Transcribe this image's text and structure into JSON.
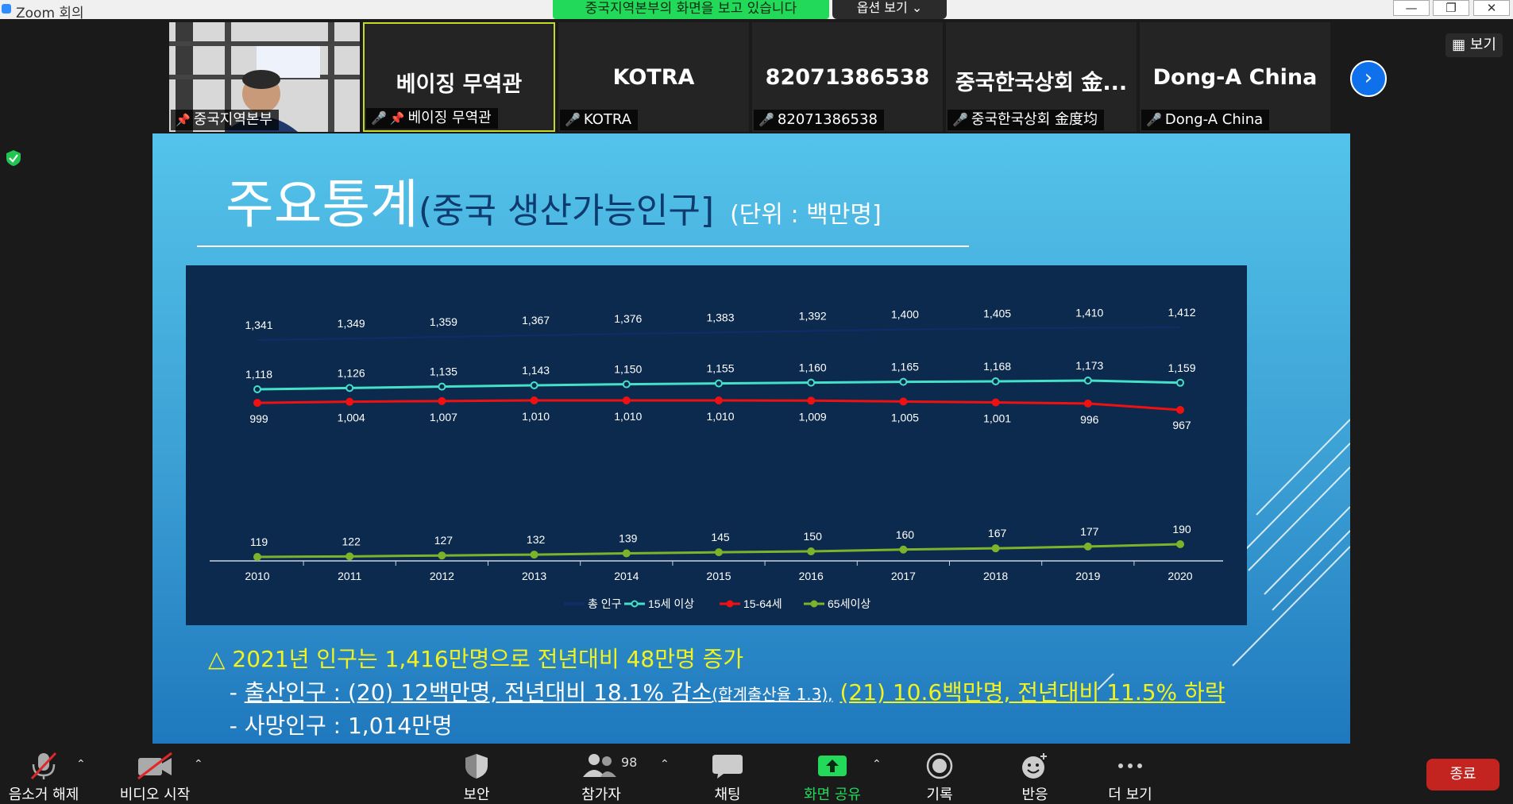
{
  "window": {
    "title": "Zoom 회의",
    "share_banner": "중국지역본부의 화면을 보고 있습니다",
    "view_options": "옵션 보기",
    "view_options_caret": "⌄",
    "minimize": "—",
    "restore": "❐",
    "close": "✕"
  },
  "participants": [
    {
      "tile_name": "",
      "label": "중국지역본부",
      "pinned": true,
      "muted": false,
      "video": true
    },
    {
      "tile_name": "베이징 무역관",
      "label": "베이징 무역관",
      "pinned": true,
      "muted": true,
      "active": true
    },
    {
      "tile_name": "KOTRA",
      "label": "KOTRA",
      "muted": true
    },
    {
      "tile_name": "82071386538",
      "label": "82071386538",
      "muted": true
    },
    {
      "tile_name": "중국한국상회 金...",
      "label": "중국한국상회 金度均",
      "muted": true
    },
    {
      "tile_name": "Dong-A China",
      "label": "Dong-A China",
      "muted": true
    }
  ],
  "view_button": "보기",
  "colors": {
    "share_green": "#23d959",
    "end_red": "#c4241f",
    "chart_bg": "#0c2a4e",
    "total": "#0f2d6a",
    "age15plus": "#45e0c8",
    "age15_64": "#ef1111",
    "age65plus": "#7db32a"
  },
  "slide": {
    "title_main": "주요통계",
    "title_sub": "(중국 생산가능인구]",
    "title_unit": "(단위 : 백만명]",
    "bullet1": "△ 2021년 인구는 1,416만명으로 전년대비 48만명 증가",
    "bullet2_prefix": "- ",
    "bullet2_main": "출산인구 : (20) 12백만명, 전년대비 18.1% 감소",
    "bullet2_small": "(합계출산율 1.3),",
    "bullet2_tail": "(21) 10.6백만명, 전년대비 11.5% 하락",
    "bullet3": "- 사망인구 : 1,014만명"
  },
  "chart_data": {
    "type": "line",
    "x": [
      "2010",
      "2011",
      "2012",
      "2013",
      "2014",
      "2015",
      "2016",
      "2017",
      "2018",
      "2019",
      "2020"
    ],
    "series": [
      {
        "name": "총 인구",
        "color": "#0f2d6a",
        "values": [
          1341,
          1349,
          1359,
          1367,
          1376,
          1383,
          1392,
          1400,
          1405,
          1410,
          1412
        ],
        "labels": [
          "1,341",
          "1,349",
          "1,359",
          "1,367",
          "1,376",
          "1,383",
          "1,392",
          "1,400",
          "1,405",
          "1,410",
          "1,412"
        ]
      },
      {
        "name": "15세 이상",
        "color": "#45e0c8",
        "values": [
          1118,
          1126,
          1135,
          1143,
          1150,
          1155,
          1160,
          1165,
          1168,
          1173,
          1159
        ],
        "labels": [
          "1,118",
          "1,126",
          "1,135",
          "1,143",
          "1,150",
          "1,155",
          "1,160",
          "1,165",
          "1,168",
          "1,173",
          "1,159"
        ]
      },
      {
        "name": "15-64세",
        "color": "#ef1111",
        "values": [
          999,
          1004,
          1007,
          1010,
          1010,
          1010,
          1009,
          1005,
          1001,
          996,
          967
        ],
        "labels": [
          "999",
          "1,004",
          "1,007",
          "1,010",
          "1,010",
          "1,010",
          "1,009",
          "1,005",
          "1,001",
          "996",
          "967"
        ]
      },
      {
        "name": "65세이상",
        "color": "#7db32a",
        "values": [
          119,
          122,
          127,
          132,
          139,
          145,
          150,
          160,
          167,
          177,
          190
        ],
        "labels": [
          "119",
          "122",
          "127",
          "132",
          "139",
          "145",
          "150",
          "160",
          "167",
          "177",
          "190"
        ]
      }
    ],
    "legend_position": "bottom",
    "grid": false
  },
  "toolbar": {
    "items": [
      {
        "key": "unmute",
        "label": "음소거 해제",
        "icon": "mic-muted-icon",
        "caret": true
      },
      {
        "key": "video",
        "label": "비디오 시작",
        "icon": "video-off-icon",
        "caret": true
      },
      {
        "key": "security",
        "label": "보안",
        "icon": "shield-icon"
      },
      {
        "key": "participants",
        "label": "참가자",
        "icon": "participants-icon",
        "count": "98",
        "caret": true
      },
      {
        "key": "chat",
        "label": "채팅",
        "icon": "chat-icon"
      },
      {
        "key": "share",
        "label": "화면 공유",
        "icon": "share-screen-icon",
        "caret": true
      },
      {
        "key": "record",
        "label": "기록",
        "icon": "record-icon"
      },
      {
        "key": "reactions",
        "label": "반응",
        "icon": "reaction-icon"
      },
      {
        "key": "more",
        "label": "더 보기",
        "icon": "more-icon"
      }
    ],
    "caret_glyph": "⌃",
    "end_label": "종료"
  }
}
